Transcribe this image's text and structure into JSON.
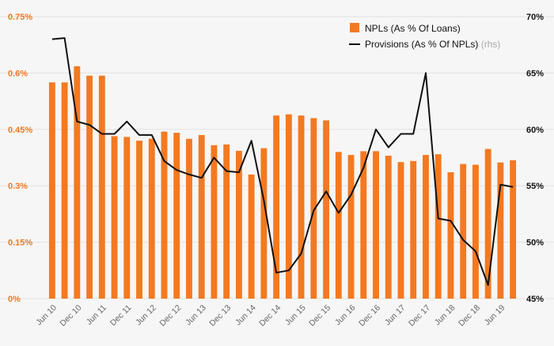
{
  "colors": {
    "bar": "#f47920",
    "line": "#111111",
    "grid": "#e2e2e2",
    "background": "#f6f6f6"
  },
  "chart_data": {
    "type": "bar+line",
    "grid": true,
    "legend_placement": "top-right",
    "left_axis": {
      "ylim": [
        0,
        0.75
      ],
      "ticks": [
        0,
        0.15,
        0.3,
        0.45,
        0.6,
        0.75
      ],
      "tick_labels": [
        "0%",
        "0.15%",
        "0.3%",
        "0.45%",
        "0.6%",
        "0.75%"
      ]
    },
    "right_axis": {
      "ylim": [
        45,
        70
      ],
      "ticks": [
        45,
        50,
        55,
        60,
        65,
        70
      ],
      "tick_labels": [
        "45%",
        "50%",
        "55%",
        "60%",
        "65%",
        "70%"
      ]
    },
    "x_tick_labels": [
      "Jun 10",
      "Dec 10",
      "Jun 11",
      "Dec 11",
      "Jun 12",
      "Dec 12",
      "Jun 13",
      "Dec 13",
      "Jun 14",
      "Dec 14",
      "Jun 15",
      "Dec 15",
      "Jun 16",
      "Dec 16",
      "Jun 17",
      "Dec 17",
      "Jun 18",
      "Dec 18",
      "Jun 19"
    ],
    "series": [
      {
        "name": "NPLs (As % Of Loans)",
        "type": "bar",
        "axis": "left",
        "values": [
          0.575,
          0.575,
          0.618,
          0.593,
          0.593,
          0.432,
          0.43,
          0.42,
          0.425,
          0.444,
          0.441,
          0.425,
          0.435,
          0.408,
          0.41,
          0.393,
          0.33,
          0.4,
          0.487,
          0.49,
          0.487,
          0.48,
          0.474,
          0.39,
          0.382,
          0.392,
          0.392,
          0.38,
          0.363,
          0.366,
          0.382,
          0.384,
          0.336,
          0.358,
          0.356,
          0.398,
          0.362,
          0.368
        ]
      },
      {
        "name": "Provisions (As % Of NPLs)",
        "suffix": "(rhs)",
        "type": "line",
        "axis": "right",
        "values": [
          68.0,
          68.1,
          60.7,
          60.4,
          59.6,
          59.6,
          60.7,
          59.5,
          59.5,
          57.2,
          56.4,
          56.0,
          55.7,
          57.5,
          56.3,
          56.2,
          59.0,
          53.7,
          47.3,
          47.5,
          49.0,
          52.8,
          54.5,
          52.6,
          54.2,
          56.6,
          60.0,
          58.4,
          59.6,
          59.6,
          65.0,
          52.1,
          51.9,
          50.2,
          49.2,
          46.2,
          55.1,
          54.9
        ]
      }
    ]
  }
}
